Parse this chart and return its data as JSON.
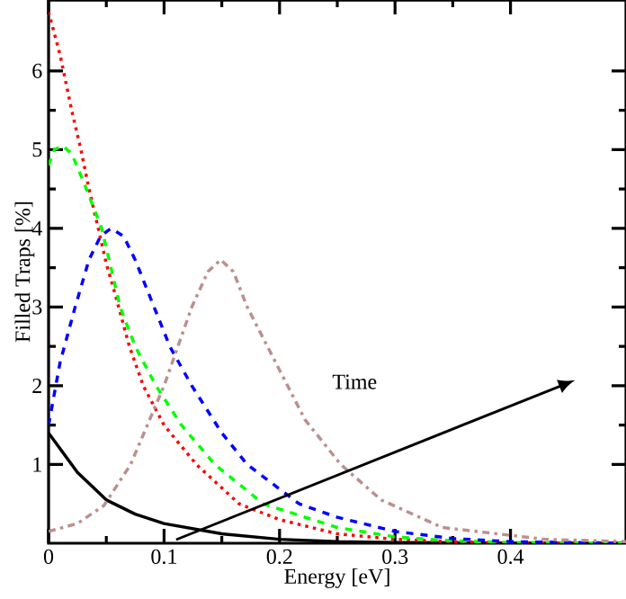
{
  "chart_data": {
    "type": "line",
    "xlabel": "Energy [eV]",
    "ylabel": "Filled Traps [%]",
    "xlim": [
      0,
      0.5
    ],
    "ylim": [
      0,
      6.9
    ],
    "xticks": [
      0,
      0.1,
      0.2,
      0.3,
      0.4
    ],
    "yticks": [
      1,
      2,
      3,
      4,
      5,
      6
    ],
    "grid": false,
    "marker": "none",
    "annotations": [
      "Time"
    ],
    "series": [
      {
        "color": "#000000",
        "line_style": "solid",
        "x": [
          0,
          0.025,
          0.05,
          0.075,
          0.1,
          0.15,
          0.2,
          0.25,
          0.3,
          0.4,
          0.5
        ],
        "values": [
          1.4,
          0.9,
          0.55,
          0.37,
          0.25,
          0.12,
          0.05,
          0.02,
          0.01,
          0,
          0
        ]
      },
      {
        "color": "#ff0000",
        "line_style": "dotted",
        "x": [
          0,
          0.01,
          0.02,
          0.028,
          0.035,
          0.043,
          0.05,
          0.056,
          0.07,
          0.082,
          0.1,
          0.128,
          0.165,
          0.2,
          0.25,
          0.3,
          0.35,
          0.4,
          0.5
        ],
        "values": [
          6.75,
          6.2,
          5.5,
          5.0,
          4.5,
          4.0,
          3.55,
          3.25,
          2.5,
          2.0,
          1.5,
          1.0,
          0.5,
          0.3,
          0.12,
          0.05,
          0.02,
          0,
          0
        ]
      },
      {
        "color": "#00ff00",
        "line_style": "dashed",
        "x": [
          0,
          0.005,
          0.012,
          0.02,
          0.03,
          0.046,
          0.062,
          0.075,
          0.093,
          0.115,
          0.144,
          0.186,
          0.25,
          0.3,
          0.35,
          0.4,
          0.5
        ],
        "values": [
          4.8,
          5.0,
          5.05,
          4.95,
          4.6,
          4.0,
          3.0,
          2.5,
          2.0,
          1.5,
          1.0,
          0.5,
          0.2,
          0.08,
          0.03,
          0.01,
          0
        ]
      },
      {
        "color": "#0000ff",
        "line_style": "dashed",
        "x": [
          0,
          0.01,
          0.023,
          0.035,
          0.045,
          0.054,
          0.065,
          0.075,
          0.09,
          0.105,
          0.124,
          0.15,
          0.172,
          0.217,
          0.25,
          0.3,
          0.35,
          0.4,
          0.5
        ],
        "values": [
          1.5,
          2.3,
          3.0,
          3.6,
          3.9,
          4.0,
          3.9,
          3.6,
          3.05,
          2.5,
          2.0,
          1.4,
          1.0,
          0.5,
          0.33,
          0.15,
          0.06,
          0.02,
          0
        ]
      },
      {
        "color": "#bc8f8f",
        "line_style": "dashdot",
        "x": [
          0,
          0.025,
          0.048,
          0.071,
          0.1,
          0.124,
          0.138,
          0.149,
          0.16,
          0.172,
          0.2,
          0.222,
          0.253,
          0.288,
          0.341,
          0.43,
          0.5
        ],
        "values": [
          0.15,
          0.25,
          0.48,
          1.0,
          2.0,
          3.0,
          3.45,
          3.6,
          3.45,
          3.0,
          2.2,
          1.57,
          1.0,
          0.55,
          0.2,
          0.05,
          0.02
        ]
      }
    ]
  }
}
